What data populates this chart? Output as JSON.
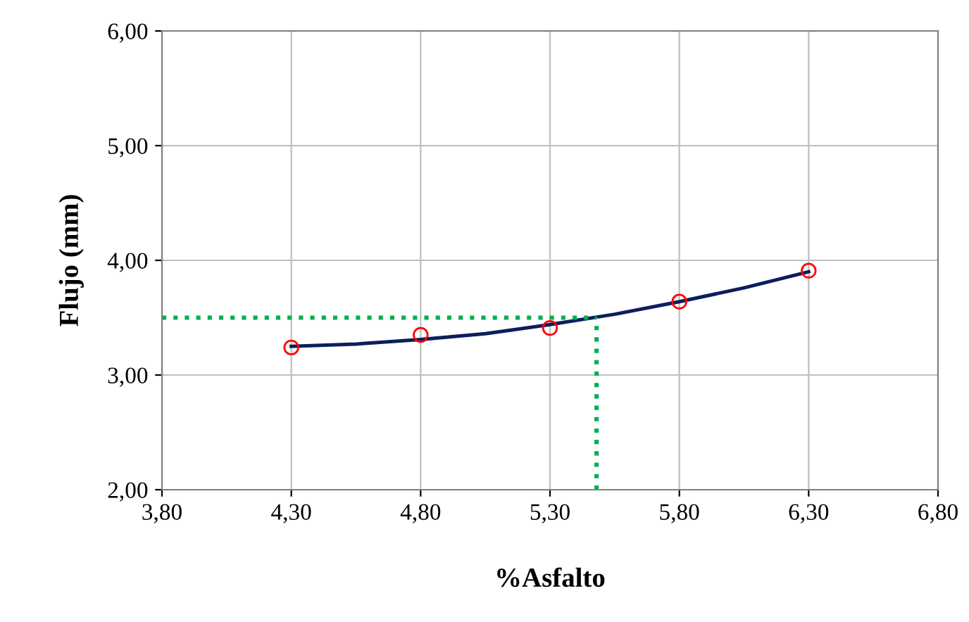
{
  "chart_data": {
    "type": "scatter",
    "xlabel": "%Asfalto",
    "ylabel": "Flujo (mm)",
    "xlim": [
      3.8,
      6.8
    ],
    "ylim": [
      2.0,
      6.0
    ],
    "xticks": [
      {
        "value": 3.8,
        "label": "3,80"
      },
      {
        "value": 4.3,
        "label": "4,30"
      },
      {
        "value": 4.8,
        "label": "4,80"
      },
      {
        "value": 5.3,
        "label": "5,30"
      },
      {
        "value": 5.8,
        "label": "5,80"
      },
      {
        "value": 6.3,
        "label": "6,30"
      },
      {
        "value": 6.8,
        "label": "6,80"
      }
    ],
    "yticks": [
      {
        "value": 2.0,
        "label": "2,00"
      },
      {
        "value": 3.0,
        "label": "3,00"
      },
      {
        "value": 4.0,
        "label": "4,00"
      },
      {
        "value": 5.0,
        "label": "5,00"
      },
      {
        "value": 6.0,
        "label": "6,00"
      }
    ],
    "grid": true,
    "legend": false,
    "series": [
      {
        "type": "line",
        "color": "#0c1e5b",
        "line_style": "solid",
        "marker": "none",
        "x": [
          4.3,
          4.55,
          4.8,
          5.05,
          5.3,
          5.55,
          5.8,
          6.05,
          6.3
        ],
        "values": [
          3.25,
          3.27,
          3.31,
          3.36,
          3.44,
          3.53,
          3.64,
          3.76,
          3.9
        ]
      },
      {
        "color": "#ff0000",
        "marker": "circle",
        "x": [
          4.3,
          4.8,
          5.3,
          5.8,
          6.3
        ],
        "values": [
          3.24,
          3.35,
          3.41,
          3.64,
          3.91
        ]
      },
      {
        "type": "line",
        "color": "#00b050",
        "line_style": "dotted",
        "marker": "none",
        "x": [
          3.8,
          5.48
        ],
        "values": [
          3.5,
          3.5
        ]
      },
      {
        "type": "line",
        "color": "#00b050",
        "line_style": "dotted",
        "marker": "none",
        "x": [
          5.48,
          5.48
        ],
        "values": [
          2.0,
          3.5
        ]
      }
    ]
  }
}
